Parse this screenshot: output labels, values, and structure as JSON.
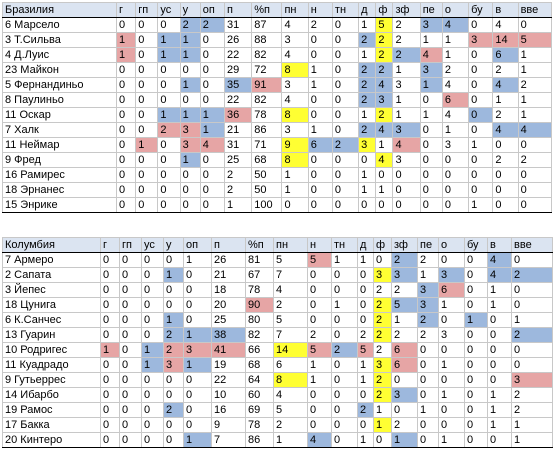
{
  "tables": [
    {
      "team": "Бразилия",
      "headers": [
        "г",
        "гп",
        "ус",
        "у",
        "оп",
        "п",
        "%п",
        "пн",
        "н",
        "тн",
        "д",
        "ф",
        "зф",
        "пе",
        "о",
        "бу",
        "в",
        "вве"
      ],
      "rows": [
        {
          "name": "6 Марсело",
          "cells": [
            "0",
            "0",
            "0",
            "2",
            "2",
            "31",
            "87",
            "4",
            "2",
            "0",
            "1",
            "5",
            "2",
            "3",
            "4",
            "0",
            "4",
            "0"
          ],
          "hl": {
            "3": "blue",
            "4": "blue",
            "11": "yellow",
            "13": "blue",
            "14": "blue"
          }
        },
        {
          "name": "3 Т.Сильва",
          "cells": [
            "1",
            "0",
            "1",
            "1",
            "0",
            "26",
            "88",
            "3",
            "0",
            "0",
            "2",
            "2",
            "2",
            "1",
            "1",
            "3",
            "14",
            "5"
          ],
          "hl": {
            "0": "red",
            "2": "blue",
            "3": "blue",
            "10": "blue",
            "11": "yellow",
            "15": "red",
            "16": "red",
            "17": "red"
          }
        },
        {
          "name": "4 Д.Луис",
          "cells": [
            "1",
            "0",
            "1",
            "1",
            "0",
            "22",
            "82",
            "4",
            "0",
            "0",
            "1",
            "2",
            "2",
            "4",
            "1",
            "0",
            "6",
            "1"
          ],
          "hl": {
            "0": "red",
            "2": "blue",
            "3": "blue",
            "11": "yellow",
            "12": "blue",
            "13": "red",
            "16": "blue"
          }
        },
        {
          "name": "23 Майкон",
          "cells": [
            "0",
            "0",
            "0",
            "0",
            "0",
            "29",
            "72",
            "8",
            "1",
            "0",
            "2",
            "2",
            "1",
            "3",
            "2",
            "0",
            "2",
            "1"
          ],
          "hl": {
            "7": "yellow",
            "10": "blue",
            "11": "blue",
            "13": "blue"
          }
        },
        {
          "name": "5 Фернандиньо",
          "cells": [
            "0",
            "0",
            "0",
            "1",
            "0",
            "35",
            "91",
            "3",
            "1",
            "0",
            "2",
            "4",
            "3",
            "1",
            "4",
            "0",
            "4",
            "2"
          ],
          "hl": {
            "3": "blue",
            "5": "blue",
            "6": "red",
            "10": "blue",
            "11": "blue",
            "13": "blue",
            "16": "blue"
          }
        },
        {
          "name": "8 Паулиньо",
          "cells": [
            "0",
            "0",
            "0",
            "0",
            "0",
            "22",
            "82",
            "4",
            "0",
            "0",
            "2",
            "3",
            "1",
            "0",
            "6",
            "0",
            "1",
            "1"
          ],
          "hl": {
            "10": "blue",
            "11": "blue",
            "14": "red"
          }
        },
        {
          "name": "11 Оскар",
          "cells": [
            "0",
            "0",
            "1",
            "1",
            "1",
            "36",
            "78",
            "8",
            "0",
            "0",
            "1",
            "2",
            "1",
            "1",
            "4",
            "0",
            "2",
            "1"
          ],
          "hl": {
            "2": "blue",
            "3": "blue",
            "4": "blue",
            "5": "red",
            "7": "yellow",
            "11": "yellow",
            "15": "blue"
          }
        },
        {
          "name": "7 Халк",
          "cells": [
            "0",
            "0",
            "2",
            "3",
            "1",
            "21",
            "86",
            "3",
            "1",
            "0",
            "2",
            "4",
            "3",
            "0",
            "1",
            "0",
            "4",
            "4"
          ],
          "hl": {
            "2": "red",
            "3": "red",
            "4": "blue",
            "10": "blue",
            "11": "blue",
            "12": "blue",
            "16": "blue",
            "17": "blue"
          }
        },
        {
          "name": "11 Неймар",
          "cells": [
            "0",
            "1",
            "0",
            "3",
            "4",
            "31",
            "71",
            "9",
            "6",
            "2",
            "3",
            "1",
            "4",
            "0",
            "3",
            "1",
            "0",
            "0"
          ],
          "hl": {
            "1": "red",
            "3": "red",
            "4": "red",
            "7": "yellow",
            "8": "blue",
            "9": "blue",
            "10": "yellow",
            "12": "red"
          }
        },
        {
          "name": "9 Фред",
          "cells": [
            "0",
            "0",
            "0",
            "1",
            "0",
            "25",
            "68",
            "8",
            "0",
            "0",
            "0",
            "4",
            "3",
            "0",
            "0",
            "0",
            "2",
            "2"
          ],
          "hl": {
            "3": "blue",
            "7": "yellow",
            "11": "yellow"
          }
        },
        {
          "name": "16 Рамирес",
          "cells": [
            "0",
            "0",
            "0",
            "0",
            "0",
            "2",
            "50",
            "1",
            "0",
            "0",
            "1",
            "0",
            "0",
            "0",
            "0",
            "0",
            "0",
            "0"
          ],
          "hl": {}
        },
        {
          "name": "18 Эрнанес",
          "cells": [
            "0",
            "0",
            "0",
            "0",
            "0",
            "2",
            "50",
            "1",
            "0",
            "0",
            "1",
            "1",
            "0",
            "0",
            "0",
            "0",
            "0",
            "0"
          ],
          "hl": {}
        },
        {
          "name": "15 Энрике",
          "cells": [
            "0",
            "0",
            "0",
            "0",
            "0",
            "1",
            "100",
            "0",
            "0",
            "0",
            "0",
            "0",
            "0",
            "0",
            "0",
            "1",
            "0",
            "0"
          ],
          "hl": {}
        }
      ]
    },
    {
      "team": "Колумбия",
      "headers": [
        "г",
        "гп",
        "ус",
        "у",
        "оп",
        "п",
        "%п",
        "пн",
        "н",
        "тн",
        "д",
        "ф",
        "зф",
        "пе",
        "о",
        "бу",
        "в",
        "вве"
      ],
      "rows": [
        {
          "name": "7 Армеро",
          "cells": [
            "0",
            "0",
            "0",
            "0",
            "1",
            "26",
            "81",
            "5",
            "5",
            "1",
            "1",
            "0",
            "2",
            "2",
            "0",
            "0",
            "4",
            "0"
          ],
          "hl": {
            "8": "red",
            "12": "blue",
            "16": "blue"
          }
        },
        {
          "name": "2 Сапата",
          "cells": [
            "0",
            "0",
            "0",
            "1",
            "0",
            "21",
            "67",
            "7",
            "0",
            "0",
            "0",
            "3",
            "3",
            "1",
            "3",
            "0",
            "4",
            "2"
          ],
          "hl": {
            "3": "blue",
            "11": "yellow",
            "12": "blue",
            "14": "blue",
            "16": "blue",
            "17": "blue"
          }
        },
        {
          "name": "3 Йепес",
          "cells": [
            "0",
            "0",
            "0",
            "0",
            "0",
            "18",
            "78",
            "4",
            "0",
            "0",
            "0",
            "2",
            "2",
            "3",
            "6",
            "0",
            "1",
            "0"
          ],
          "hl": {
            "13": "blue",
            "14": "red"
          }
        },
        {
          "name": "18 Цунига",
          "cells": [
            "0",
            "0",
            "0",
            "0",
            "0",
            "20",
            "90",
            "2",
            "0",
            "1",
            "0",
            "2",
            "5",
            "3",
            "1",
            "0",
            "1",
            "0"
          ],
          "hl": {
            "6": "red",
            "11": "yellow",
            "12": "blue",
            "13": "blue"
          }
        },
        {
          "name": "6 К.Санчес",
          "cells": [
            "0",
            "0",
            "0",
            "1",
            "0",
            "25",
            "80",
            "5",
            "0",
            "0",
            "0",
            "2",
            "1",
            "2",
            "0",
            "1",
            "0",
            "1"
          ],
          "hl": {
            "3": "blue",
            "11": "yellow",
            "13": "blue",
            "15": "blue"
          }
        },
        {
          "name": "13 Гуарин",
          "cells": [
            "0",
            "0",
            "0",
            "2",
            "1",
            "38",
            "82",
            "7",
            "2",
            "0",
            "2",
            "2",
            "2",
            "2",
            "3",
            "0",
            "0",
            "2"
          ],
          "hl": {
            "3": "blue",
            "4": "blue",
            "5": "blue",
            "11": "yellow",
            "17": "blue"
          }
        },
        {
          "name": "10 Родригес",
          "cells": [
            "1",
            "0",
            "1",
            "2",
            "3",
            "41",
            "66",
            "14",
            "5",
            "2",
            "5",
            "2",
            "6",
            "0",
            "0",
            "0",
            "0",
            "0"
          ],
          "hl": {
            "0": "red",
            "2": "blue",
            "3": "red",
            "4": "red",
            "5": "red",
            "7": "yellow",
            "8": "red",
            "9": "blue",
            "10": "red",
            "12": "red"
          }
        },
        {
          "name": "11 Куадрадо",
          "cells": [
            "0",
            "0",
            "1",
            "3",
            "1",
            "19",
            "68",
            "6",
            "1",
            "0",
            "1",
            "3",
            "6",
            "0",
            "1",
            "0",
            "0",
            "0"
          ],
          "hl": {
            "2": "blue",
            "3": "red",
            "4": "blue",
            "11": "yellow",
            "12": "red"
          }
        },
        {
          "name": "9 Гутьеррес",
          "cells": [
            "0",
            "0",
            "0",
            "0",
            "0",
            "22",
            "64",
            "8",
            "1",
            "0",
            "1",
            "2",
            "0",
            "0",
            "0",
            "0",
            "0",
            "3"
          ],
          "hl": {
            "7": "yellow",
            "11": "yellow",
            "17": "red"
          }
        },
        {
          "name": "14 Ибарбо",
          "cells": [
            "0",
            "0",
            "0",
            "0",
            "0",
            "10",
            "60",
            "4",
            "0",
            "0",
            "0",
            "2",
            "3",
            "0",
            "1",
            "0",
            "1",
            "2"
          ],
          "hl": {
            "11": "yellow",
            "12": "blue"
          }
        },
        {
          "name": "19 Рамос",
          "cells": [
            "0",
            "0",
            "0",
            "2",
            "0",
            "16",
            "69",
            "5",
            "0",
            "0",
            "2",
            "1",
            "0",
            "1",
            "0",
            "0",
            "1",
            "2"
          ],
          "hl": {
            "3": "blue",
            "10": "blue"
          }
        },
        {
          "name": "17 Бакка",
          "cells": [
            "0",
            "0",
            "0",
            "0",
            "0",
            "9",
            "78",
            "2",
            "0",
            "0",
            "0",
            "1",
            "2",
            "0",
            "0",
            "0",
            "1",
            "1"
          ],
          "hl": {
            "11": "yellow"
          }
        },
        {
          "name": "20 Кинтеро",
          "cells": [
            "0",
            "0",
            "0",
            "0",
            "1",
            "7",
            "86",
            "1",
            "4",
            "0",
            "1",
            "0",
            "1",
            "0",
            "1",
            "0",
            "0",
            "1"
          ],
          "hl": {
            "4": "blue",
            "8": "blue",
            "12": "blue"
          }
        }
      ]
    }
  ]
}
